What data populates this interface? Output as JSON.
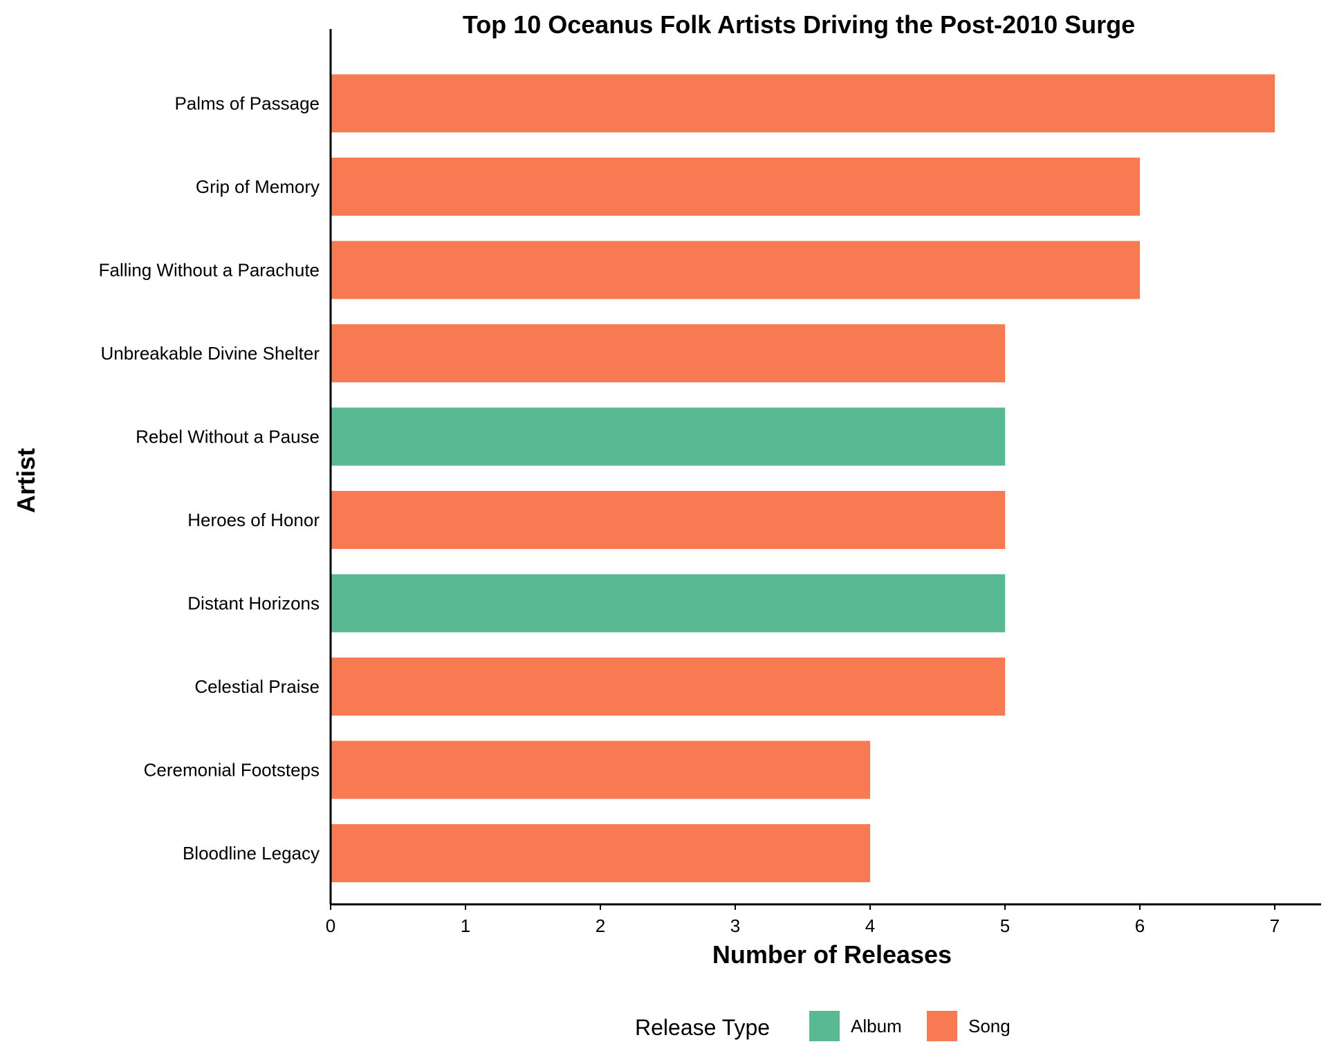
{
  "chart_data": {
    "type": "bar",
    "orientation": "horizontal",
    "title": "Top 10 Oceanus Folk Artists Driving the Post-2010 Surge",
    "xlabel": "Number of Releases",
    "ylabel": "Artist",
    "xlim": [
      0,
      7.35
    ],
    "xticks": [
      0,
      1,
      2,
      3,
      4,
      5,
      6,
      7
    ],
    "grid": false,
    "legend": {
      "title": "Release Type",
      "placement": "bottom",
      "entries": [
        {
          "label": "Album",
          "color": "#59b992"
        },
        {
          "label": "Song",
          "color": "#f77a52"
        }
      ]
    },
    "bars": [
      {
        "artist": "Palms of Passage",
        "value": 7,
        "type": "Song"
      },
      {
        "artist": "Grip of Memory",
        "value": 6,
        "type": "Song"
      },
      {
        "artist": "Falling Without a Parachute",
        "value": 6,
        "type": "Song"
      },
      {
        "artist": "Unbreakable Divine Shelter",
        "value": 5,
        "type": "Song"
      },
      {
        "artist": "Rebel Without a Pause",
        "value": 5,
        "type": "Album"
      },
      {
        "artist": "Heroes of Honor",
        "value": 5,
        "type": "Song"
      },
      {
        "artist": "Distant Horizons",
        "value": 5,
        "type": "Album"
      },
      {
        "artist": "Celestial Praise",
        "value": 5,
        "type": "Song"
      },
      {
        "artist": "Ceremonial Footsteps",
        "value": 4,
        "type": "Song"
      },
      {
        "artist": "Bloodline Legacy",
        "value": 4,
        "type": "Song"
      }
    ]
  }
}
